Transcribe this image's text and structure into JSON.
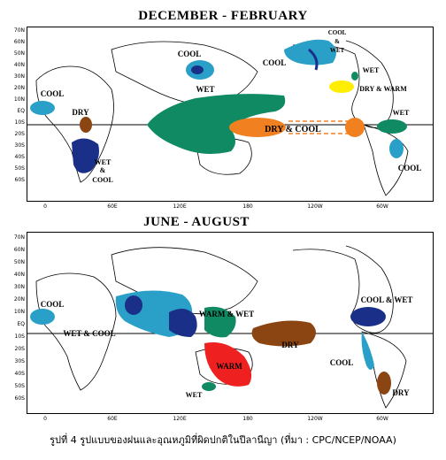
{
  "panels": [
    {
      "title": "DECEMBER  -  FEBRUARY",
      "lat_ticks": [
        "70N",
        "60N",
        "50N",
        "40N",
        "30N",
        "20N",
        "10N",
        "EQ",
        "10S",
        "20S",
        "30S",
        "40S",
        "50S",
        "60S"
      ],
      "lon_ticks": [
        "0",
        "60E",
        "120E",
        "180",
        "120W",
        "60W"
      ],
      "labels": {
        "cool_wafrica": "COOL",
        "dry_eafrica": "DRY",
        "wet_safrica": "WET",
        "amp_safrica": "&",
        "cool_safrica": "COOL",
        "cool_npacific": "COOL",
        "cool_japan": "COOL",
        "wet_maritime": "WET",
        "dry_cool_pacific": "DRY  &  COOL",
        "cool_wet_nwamerica": "COOL",
        "amp_nwamerica": "&",
        "wet_nwamerica": "WET",
        "wet_gulf": "WET",
        "dry_warm_se": "DRY & WARM",
        "wet_samerica": "WET",
        "cool_samerica": "COOL"
      }
    },
    {
      "title": "JUNE  -  AUGUST",
      "lat_ticks": [
        "70N",
        "60N",
        "50N",
        "40N",
        "30N",
        "20N",
        "10N",
        "EQ",
        "10S",
        "20S",
        "30S",
        "40S",
        "50S",
        "60S"
      ],
      "lon_ticks": [
        "0",
        "60E",
        "120E",
        "180",
        "120W",
        "60W"
      ],
      "labels": {
        "cool_wafrica": "COOL",
        "wet_cool_india": "WET  &  COOL",
        "warm_wet": "WARM & WET",
        "dry_pacific": "DRY",
        "warm_australia": "WARM",
        "wet_nz": "WET",
        "cool_wet_camerica": "COOL & WET",
        "cool_samerica": "COOL",
        "dry_samerica": "DRY"
      }
    }
  ],
  "caption": "รูปที่ 4 รูปแบบของฝนและอุณหภูมิที่ผิดปกติในปีลานีญา (ที่มา : CPC/NCEP/NOAA)",
  "colors": {
    "cool": "#2aa0c8",
    "wet": "#0f8a63",
    "dry": "#8b4513",
    "dry_cool": "#f08020",
    "warm": "#ee2020",
    "dry_warm": "#ffee00",
    "navy": "#1a2f88"
  }
}
